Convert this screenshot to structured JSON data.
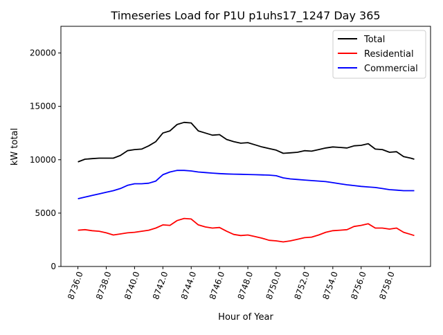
{
  "chart_data": {
    "type": "line",
    "title": "Timeseries Load for P1U p1uhs17_1247  Day 365",
    "xlabel": "Hour of Year",
    "ylabel": "kW total",
    "xlim": [
      8734.8,
      8760.9
    ],
    "ylim": [
      0,
      22500
    ],
    "xticks": [
      8736,
      8738,
      8740,
      8742,
      8744,
      8746,
      8748,
      8750,
      8752,
      8754,
      8756,
      8758
    ],
    "xtick_labels": [
      "8736.0",
      "8738.0",
      "8740.0",
      "8742.0",
      "8744.0",
      "8746.0",
      "8748.0",
      "8750.0",
      "8752.0",
      "8754.0",
      "8756.0",
      "8758.0"
    ],
    "yticks": [
      0,
      5000,
      10000,
      15000,
      20000
    ],
    "ytick_labels": [
      "0",
      "5000",
      "10000",
      "15000",
      "20000"
    ],
    "grid": false,
    "legend_position": "top-right",
    "x": [
      8736,
      8736.5,
      8737,
      8737.5,
      8738,
      8738.5,
      8739,
      8739.5,
      8740,
      8740.5,
      8741,
      8741.5,
      8742,
      8742.5,
      8743,
      8743.5,
      8744,
      8744.5,
      8745,
      8745.5,
      8746,
      8746.5,
      8747,
      8747.5,
      8748,
      8748.5,
      8749,
      8749.5,
      8750,
      8750.5,
      8751,
      8751.5,
      8752,
      8752.5,
      8753,
      8753.5,
      8754,
      8754.5,
      8755,
      8755.5,
      8756,
      8756.5,
      8757,
      8757.5,
      8758,
      8758.5,
      8759,
      8759.5,
      8759.75
    ],
    "series": [
      {
        "name": "Total",
        "color": "#000000",
        "values": [
          9800,
          10050,
          10100,
          10150,
          10150,
          10150,
          10400,
          10850,
          10950,
          11000,
          11300,
          11700,
          12500,
          12700,
          13300,
          13500,
          13450,
          12700,
          12500,
          12300,
          12350,
          11900,
          11700,
          11550,
          11600,
          11400,
          11200,
          11050,
          10900,
          10600,
          10650,
          10700,
          10850,
          10800,
          10950,
          11100,
          11200,
          11150,
          11100,
          11300,
          11350,
          11500,
          11000,
          10950,
          10700,
          10750,
          10300,
          10150,
          10050
        ]
      },
      {
        "name": "Residential",
        "color": "#ff0000",
        "values": [
          3400,
          3450,
          3350,
          3300,
          3150,
          2950,
          3050,
          3150,
          3200,
          3300,
          3400,
          3600,
          3900,
          3850,
          4300,
          4500,
          4450,
          3900,
          3700,
          3600,
          3650,
          3300,
          3000,
          2900,
          2950,
          2800,
          2650,
          2450,
          2400,
          2300,
          2400,
          2550,
          2700,
          2750,
          2950,
          3200,
          3350,
          3400,
          3450,
          3750,
          3850,
          4000,
          3600,
          3600,
          3500,
          3600,
          3200,
          3000,
          2900
        ]
      },
      {
        "name": "Commercial",
        "color": "#0000ff",
        "values": [
          6350,
          6500,
          6650,
          6800,
          6950,
          7100,
          7300,
          7600,
          7750,
          7750,
          7800,
          8000,
          8600,
          8850,
          9000,
          9000,
          8950,
          8850,
          8800,
          8750,
          8700,
          8670,
          8650,
          8640,
          8620,
          8600,
          8580,
          8560,
          8500,
          8300,
          8200,
          8150,
          8100,
          8050,
          8000,
          7950,
          7850,
          7750,
          7650,
          7580,
          7500,
          7450,
          7400,
          7300,
          7200,
          7150,
          7100,
          7100,
          7100
        ]
      }
    ]
  }
}
